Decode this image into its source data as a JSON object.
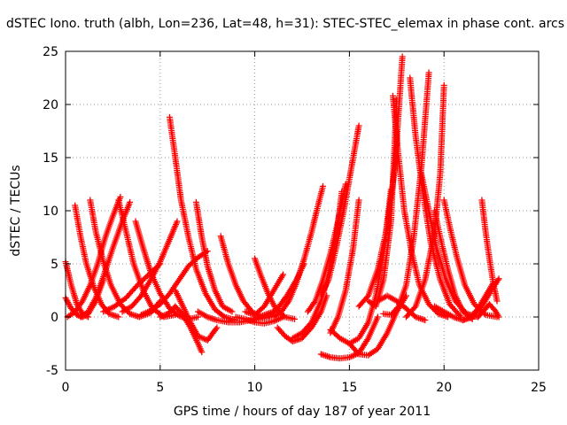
{
  "chart_data": {
    "type": "scatter",
    "title": "dSTEC Iono. truth (albh, Lon=236, Lat=48, h=31): STEC-STEC_elemax in phase cont. arcs",
    "xlabel": "GPS time / hours of day 187 of year 2011",
    "ylabel": "dSTEC  / TECUs",
    "xlim": [
      0,
      25
    ],
    "ylim": [
      -5,
      25
    ],
    "xticks": [
      0,
      5,
      10,
      15,
      20,
      25
    ],
    "yticks": [
      -5,
      0,
      5,
      10,
      15,
      20,
      25
    ],
    "grid": true,
    "marker": "+",
    "color": "#ff0000",
    "series": [
      {
        "x": [
          0.0,
          0.3,
          0.6,
          0.9,
          1.2
        ],
        "y": [
          5.2,
          3.0,
          1.2,
          0.3,
          0.0
        ]
      },
      {
        "x": [
          0.0,
          0.3,
          0.6,
          0.9,
          1.2,
          1.6,
          2.0
        ],
        "y": [
          1.8,
          0.8,
          0.2,
          0.0,
          0.3,
          1.5,
          3.5
        ]
      },
      {
        "x": [
          0.5,
          0.8,
          1.1,
          1.5,
          1.9,
          2.3,
          2.8
        ],
        "y": [
          10.5,
          7.5,
          5.0,
          2.8,
          1.2,
          0.3,
          0.0
        ]
      },
      {
        "x": [
          0.1,
          0.5,
          0.9,
          1.3,
          1.7,
          2.1,
          2.5,
          2.9
        ],
        "y": [
          0.0,
          0.5,
          1.5,
          3.0,
          5.0,
          7.5,
          9.5,
          11.3
        ]
      },
      {
        "x": [
          1.3,
          1.6,
          2.0,
          2.4,
          2.9,
          3.4,
          3.9,
          4.5,
          5.0
        ],
        "y": [
          11.0,
          8.0,
          5.2,
          3.0,
          1.2,
          0.3,
          0.0,
          0.4,
          1.5
        ]
      },
      {
        "x": [
          0.8,
          1.2,
          1.6,
          2.0,
          2.5,
          3.0,
          3.4
        ],
        "y": [
          0.0,
          0.5,
          1.8,
          3.8,
          6.5,
          9.0,
          10.8
        ]
      },
      {
        "x": [
          2.8,
          3.2,
          3.6,
          4.1,
          4.6,
          5.2,
          5.8
        ],
        "y": [
          11.0,
          8.0,
          5.0,
          2.5,
          0.8,
          0.0,
          0.2
        ]
      },
      {
        "x": [
          3.0,
          3.5,
          4.0,
          4.5,
          5.0,
          5.5,
          5.9
        ],
        "y": [
          0.5,
          1.0,
          2.0,
          3.5,
          5.2,
          7.3,
          9.0
        ]
      },
      {
        "x": [
          3.7,
          4.1,
          4.5,
          5.0,
          5.5,
          6.0,
          6.5,
          7.0
        ],
        "y": [
          9.0,
          6.5,
          4.2,
          2.2,
          0.8,
          0.1,
          -0.2,
          0.0
        ]
      },
      {
        "x": [
          2.0,
          2.6,
          3.2,
          3.8,
          4.4,
          5.0
        ],
        "y": [
          0.5,
          1.0,
          1.8,
          3.0,
          4.0,
          5.0
        ]
      },
      {
        "x": [
          4.0,
          4.5,
          5.0,
          5.5,
          6.0,
          6.5,
          7.0,
          7.5
        ],
        "y": [
          0.2,
          0.6,
          1.2,
          2.2,
          3.5,
          4.8,
          5.6,
          6.2
        ]
      },
      {
        "x": [
          5.5,
          5.8,
          6.1,
          6.5,
          6.9,
          7.4,
          7.9,
          8.4,
          9.0
        ],
        "y": [
          18.8,
          15.0,
          11.0,
          7.5,
          4.5,
          2.2,
          0.7,
          0.0,
          -0.3
        ]
      },
      {
        "x": [
          5.0,
          5.4,
          5.8,
          6.2,
          6.6,
          7.0,
          7.2
        ],
        "y": [
          0.0,
          0.3,
          1.0,
          0.2,
          -1.0,
          -2.5,
          -3.3
        ]
      },
      {
        "x": [
          5.8,
          6.2,
          6.6,
          7.0,
          7.5,
          8.0
        ],
        "y": [
          2.5,
          1.0,
          -0.5,
          -1.8,
          -2.2,
          -1.0
        ]
      },
      {
        "x": [
          6.9,
          7.2,
          7.5,
          7.9,
          8.3,
          8.8
        ],
        "y": [
          10.8,
          7.5,
          4.8,
          2.5,
          1.0,
          0.5
        ]
      },
      {
        "x": [
          7.0,
          7.5,
          8.0,
          8.6,
          9.2,
          9.8,
          10.5,
          11.0
        ],
        "y": [
          0.5,
          0.0,
          -0.3,
          -0.5,
          -0.5,
          -0.3,
          0.2,
          0.5
        ]
      },
      {
        "x": [
          8.2,
          8.6,
          9.0,
          9.4,
          9.9,
          10.4,
          10.9
        ],
        "y": [
          7.6,
          5.0,
          3.0,
          1.5,
          0.4,
          0.0,
          0.1
        ]
      },
      {
        "x": [
          9.0,
          9.5,
          10.0,
          10.5,
          11.0,
          11.5
        ],
        "y": [
          0.0,
          -0.2,
          -0.5,
          -0.6,
          -0.4,
          0.0
        ]
      },
      {
        "x": [
          10.0,
          10.3,
          10.7,
          11.1,
          11.6,
          12.1
        ],
        "y": [
          5.5,
          4.0,
          2.2,
          0.8,
          0.0,
          -0.2
        ]
      },
      {
        "x": [
          9.5,
          10.0,
          10.5,
          11.0,
          11.5
        ],
        "y": [
          0.5,
          0.2,
          1.0,
          2.5,
          4.0
        ]
      },
      {
        "x": [
          10.2,
          10.7,
          11.2,
          11.7,
          12.2,
          12.6
        ],
        "y": [
          -0.2,
          0.0,
          0.8,
          2.0,
          3.5,
          5.0
        ]
      },
      {
        "x": [
          11.0,
          11.4,
          11.8,
          12.2,
          12.6,
          13.0,
          13.3,
          13.6
        ],
        "y": [
          0.0,
          0.5,
          1.5,
          3.2,
          5.4,
          8.0,
          10.2,
          12.3
        ]
      },
      {
        "x": [
          11.2,
          11.6,
          12.0,
          12.5,
          13.0,
          13.5,
          13.8
        ],
        "y": [
          -1.0,
          -1.8,
          -2.3,
          -2.0,
          -1.0,
          0.5,
          2.0
        ]
      },
      {
        "x": [
          12.0,
          12.5,
          13.0,
          13.5,
          13.9,
          14.3,
          14.6
        ],
        "y": [
          -2.0,
          -1.5,
          -0.5,
          1.5,
          4.0,
          7.5,
          11.8
        ]
      },
      {
        "x": [
          12.8,
          13.2,
          13.6,
          14.0,
          14.4,
          14.8
        ],
        "y": [
          0.5,
          1.5,
          3.5,
          6.0,
          9.0,
          12.5
        ]
      },
      {
        "x": [
          13.5,
          13.9,
          14.3,
          14.7,
          15.1,
          15.5
        ],
        "y": [
          2.0,
          3.5,
          6.5,
          10.0,
          14.0,
          18.0
        ]
      },
      {
        "x": [
          14.0,
          14.4,
          14.8,
          15.2,
          15.5
        ],
        "y": [
          -1.5,
          0.0,
          2.5,
          6.5,
          11.0
        ]
      },
      {
        "x": [
          13.5,
          14.0,
          14.5,
          15.0,
          15.5,
          16.0,
          16.5
        ],
        "y": [
          -3.5,
          -3.8,
          -3.9,
          -3.8,
          -3.4,
          -2.0,
          0.0
        ]
      },
      {
        "x": [
          14.0,
          14.5,
          15.0,
          15.5,
          16.0,
          16.4,
          16.8,
          17.2
        ],
        "y": [
          -1.2,
          -2.0,
          -2.5,
          -2.0,
          -0.5,
          2.0,
          6.0,
          12.0
        ]
      },
      {
        "x": [
          15.0,
          15.5,
          16.0,
          16.5,
          17.0,
          17.5,
          18.0
        ],
        "y": [
          -2.5,
          -3.5,
          -3.6,
          -3.0,
          -1.5,
          0.5,
          2.0
        ]
      },
      {
        "x": [
          15.5,
          16.0,
          16.5,
          17.0,
          17.4,
          17.8
        ],
        "y": [
          1.0,
          2.0,
          4.5,
          8.5,
          14.0,
          24.5
        ]
      },
      {
        "x": [
          16.0,
          16.4,
          16.8,
          17.2,
          17.5
        ],
        "y": [
          1.5,
          1.0,
          3.5,
          9.0,
          20.5
        ]
      },
      {
        "x": [
          16.5,
          17.0,
          17.5,
          18.0,
          18.5,
          19.0
        ],
        "y": [
          1.5,
          2.0,
          1.5,
          0.8,
          0.0,
          -0.3
        ]
      },
      {
        "x": [
          17.3,
          17.6,
          17.9,
          18.3,
          18.7,
          19.2,
          19.7,
          20.2
        ],
        "y": [
          20.8,
          15.0,
          10.0,
          6.0,
          3.0,
          1.2,
          0.3,
          0.0
        ]
      },
      {
        "x": [
          16.8,
          17.2,
          17.6,
          18.0,
          18.4,
          18.8,
          19.2
        ],
        "y": [
          0.3,
          0.2,
          1.0,
          3.0,
          7.5,
          14.0,
          23.0
        ]
      },
      {
        "x": [
          18.2,
          18.5,
          18.9,
          19.3,
          19.8,
          20.3,
          20.9
        ],
        "y": [
          22.5,
          17.0,
          11.5,
          7.0,
          3.5,
          1.2,
          0.0
        ]
      },
      {
        "x": [
          18.0,
          18.5,
          19.0,
          19.5,
          19.8,
          20.0
        ],
        "y": [
          0.0,
          1.0,
          3.5,
          8.0,
          13.5,
          21.8
        ]
      },
      {
        "x": [
          18.8,
          19.2,
          19.6,
          20.1,
          20.6,
          21.2,
          21.8
        ],
        "y": [
          13.5,
          10.0,
          6.5,
          3.5,
          1.5,
          0.3,
          0.0
        ]
      },
      {
        "x": [
          19.5,
          19.8,
          20.2,
          20.6,
          21.0,
          21.5
        ],
        "y": [
          10.0,
          7.5,
          4.5,
          2.0,
          0.5,
          -0.2
        ]
      },
      {
        "x": [
          20.0,
          20.3,
          20.7,
          21.1,
          21.6,
          22.2,
          22.8
        ],
        "y": [
          11.0,
          8.5,
          5.5,
          3.0,
          1.2,
          0.2,
          0.0
        ]
      },
      {
        "x": [
          19.5,
          20.0,
          20.5,
          21.0,
          21.5,
          22.0,
          22.5,
          22.9
        ],
        "y": [
          1.0,
          0.5,
          0.0,
          -0.3,
          0.0,
          1.0,
          2.5,
          3.6
        ]
      },
      {
        "x": [
          21.0,
          21.4,
          21.8,
          22.2,
          22.6
        ],
        "y": [
          -0.3,
          0.0,
          0.8,
          2.0,
          3.2
        ]
      },
      {
        "x": [
          22.0,
          22.2,
          22.4,
          22.6,
          22.8
        ],
        "y": [
          11.0,
          8.0,
          5.5,
          3.2,
          1.5
        ]
      },
      {
        "x": [
          21.8,
          22.1,
          22.4,
          22.7,
          22.9
        ],
        "y": [
          0.0,
          0.6,
          1.2,
          0.6,
          0.0
        ]
      }
    ]
  }
}
